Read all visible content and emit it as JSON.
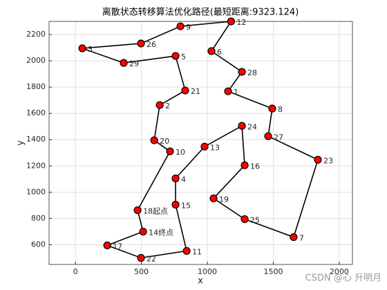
{
  "chart_data": {
    "type": "line",
    "title": "离散状态转移算法优化路径(最短距离:9323.124)",
    "x_label": "x",
    "y_label": "y",
    "labels": [
      "12",
      "9",
      "26",
      "3",
      "29",
      "5",
      "21",
      "2",
      "20",
      "10",
      "18起点",
      "14终点",
      "17",
      "22",
      "11",
      "15",
      "4",
      "13",
      "24",
      "16",
      "19",
      "25",
      "7",
      "23",
      "27",
      "8",
      "1",
      "28",
      "6"
    ],
    "x": [
      1180,
      796,
      497,
      52,
      366,
      759,
      832,
      639,
      597,
      717,
      471,
      513,
      241,
      497,
      843,
      759,
      759,
      979,
      1262,
      1283,
      1047,
      1283,
      1654,
      1838,
      1461,
      1492,
      1157,
      1262,
      1031
    ],
    "y": [
      2300,
      2263,
      2132,
      2095,
      1984,
      2037,
      1774,
      1663,
      1395,
      1311,
      863,
      700,
      595,
      500,
      553,
      905,
      1105,
      1347,
      1505,
      1205,
      953,
      795,
      658,
      1247,
      1426,
      1637,
      1768,
      1916,
      2074
    ],
    "line_color": "#000000",
    "marker_color": "#ff0000",
    "closed": true,
    "xlim": [
      -200,
      2100
    ],
    "xticks": [
      0,
      500,
      1000,
      1500,
      2000
    ],
    "ylim": [
      450,
      2300
    ],
    "yticks": [
      600,
      800,
      1000,
      1200,
      1400,
      1600,
      1800,
      2000,
      2200
    ],
    "grid": true,
    "watermark": "CSDN @心 升明月"
  }
}
